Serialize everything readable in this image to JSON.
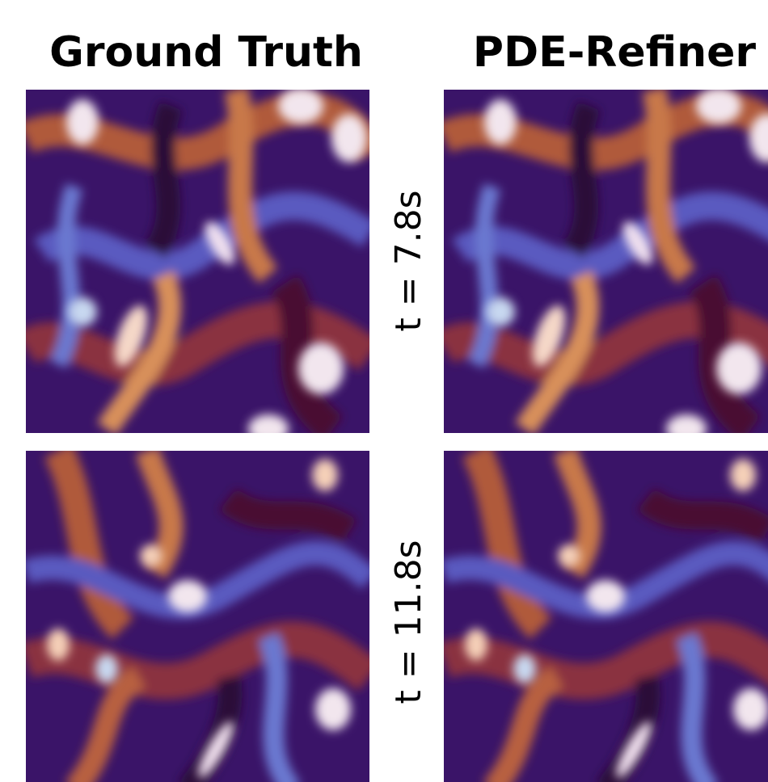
{
  "columns": [
    "Ground Truth",
    "PDE-Refiner"
  ],
  "rows": [
    "t = 7.8s",
    "t = 11.8s"
  ]
}
